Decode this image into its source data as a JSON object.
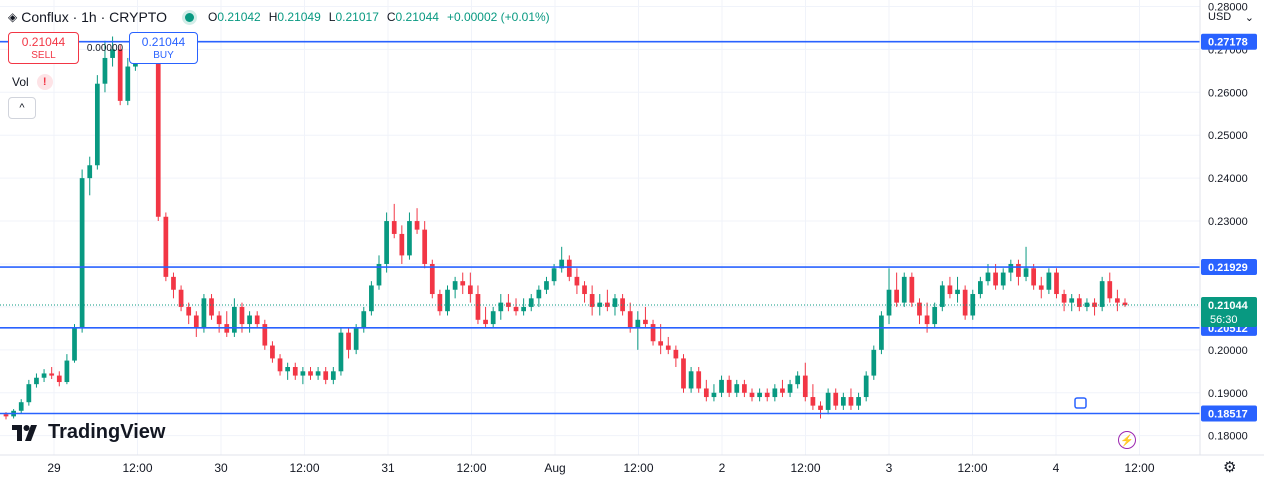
{
  "header": {
    "symbol": "Conflux · 1h · CRYPTO",
    "o_label": "O",
    "o": "0.21042",
    "h_label": "H",
    "h": "0.21049",
    "l_label": "L",
    "l": "0.21017",
    "c_label": "C",
    "c": "0.21044",
    "change": "+0.00002 (+0.01%)"
  },
  "trade": {
    "sell_price": "0.21044",
    "sell_label": "SELL",
    "buy_price": "0.21044",
    "buy_label": "BUY",
    "spread": "0.00000"
  },
  "volume_label": "Vol",
  "warning_glyph": "!",
  "collapse_glyph": "^",
  "brand": "TradingView",
  "currency": "USD",
  "colors": {
    "up": "#089981",
    "down": "#f23645",
    "line": "#2962ff"
  },
  "chart_data": {
    "type": "candlestick",
    "title": "Conflux · 1h · CRYPTO",
    "ylim": [
      0.1755,
      0.2815
    ],
    "y_ticks": [
      "0.28000",
      "0.27000",
      "0.26000",
      "0.25000",
      "0.24000",
      "0.23000",
      "0.22000",
      "0.21000",
      "0.20000",
      "0.19000",
      "0.18000"
    ],
    "x_ticks": [
      "29",
      "12:00",
      "30",
      "12:00",
      "31",
      "12:00",
      "Aug",
      "12:00",
      "2",
      "12:00",
      "3",
      "12:00",
      "4",
      "12:00"
    ],
    "grid": true,
    "horizontal_lines": [
      {
        "value": 0.27178,
        "label": "0.27178"
      },
      {
        "value": 0.21929,
        "label": "0.21929"
      },
      {
        "value": 0.20512,
        "label": "0.20512"
      },
      {
        "value": 0.18517,
        "label": "0.18517"
      }
    ],
    "last_price": {
      "value": 0.21044,
      "label": "0.21044",
      "countdown": "56:30"
    },
    "candles": [
      [
        0.185,
        0.1855,
        0.1838,
        0.1845
      ],
      [
        0.1845,
        0.1862,
        0.184,
        0.1858
      ],
      [
        0.1858,
        0.1885,
        0.1852,
        0.1878
      ],
      [
        0.1878,
        0.193,
        0.187,
        0.192
      ],
      [
        0.192,
        0.1945,
        0.1912,
        0.1935
      ],
      [
        0.1935,
        0.1955,
        0.1925,
        0.1945
      ],
      [
        0.1945,
        0.196,
        0.1932,
        0.194
      ],
      [
        0.194,
        0.195,
        0.1915,
        0.1925
      ],
      [
        0.1925,
        0.199,
        0.192,
        0.1975
      ],
      [
        0.1975,
        0.206,
        0.197,
        0.205
      ],
      [
        0.205,
        0.242,
        0.204,
        0.24
      ],
      [
        0.24,
        0.245,
        0.236,
        0.243
      ],
      [
        0.243,
        0.264,
        0.242,
        0.262
      ],
      [
        0.262,
        0.272,
        0.26,
        0.268
      ],
      [
        0.268,
        0.273,
        0.266,
        0.27
      ],
      [
        0.27,
        0.271,
        0.257,
        0.258
      ],
      [
        0.258,
        0.268,
        0.257,
        0.266
      ],
      [
        0.266,
        0.274,
        0.265,
        0.272
      ],
      [
        0.272,
        0.273,
        0.268,
        0.269
      ],
      [
        0.269,
        0.274,
        0.268,
        0.272
      ],
      [
        0.272,
        0.273,
        0.23,
        0.231
      ],
      [
        0.231,
        0.232,
        0.216,
        0.217
      ],
      [
        0.217,
        0.218,
        0.212,
        0.214
      ],
      [
        0.214,
        0.215,
        0.209,
        0.21
      ],
      [
        0.21,
        0.211,
        0.206,
        0.208
      ],
      [
        0.208,
        0.209,
        0.203,
        0.205
      ],
      [
        0.205,
        0.213,
        0.204,
        0.212
      ],
      [
        0.212,
        0.213,
        0.207,
        0.208
      ],
      [
        0.208,
        0.209,
        0.204,
        0.206
      ],
      [
        0.206,
        0.209,
        0.203,
        0.204
      ],
      [
        0.204,
        0.212,
        0.203,
        0.21
      ],
      [
        0.21,
        0.211,
        0.204,
        0.206
      ],
      [
        0.206,
        0.209,
        0.204,
        0.208
      ],
      [
        0.208,
        0.209,
        0.205,
        0.206
      ],
      [
        0.206,
        0.207,
        0.2,
        0.201
      ],
      [
        0.201,
        0.202,
        0.197,
        0.198
      ],
      [
        0.198,
        0.199,
        0.194,
        0.195
      ],
      [
        0.195,
        0.197,
        0.193,
        0.196
      ],
      [
        0.196,
        0.197,
        0.193,
        0.194
      ],
      [
        0.194,
        0.196,
        0.192,
        0.195
      ],
      [
        0.195,
        0.196,
        0.193,
        0.194
      ],
      [
        0.194,
        0.196,
        0.193,
        0.195
      ],
      [
        0.195,
        0.196,
        0.192,
        0.193
      ],
      [
        0.193,
        0.196,
        0.192,
        0.195
      ],
      [
        0.195,
        0.205,
        0.194,
        0.204
      ],
      [
        0.204,
        0.205,
        0.198,
        0.2
      ],
      [
        0.2,
        0.206,
        0.199,
        0.205
      ],
      [
        0.205,
        0.21,
        0.204,
        0.209
      ],
      [
        0.209,
        0.216,
        0.208,
        0.215
      ],
      [
        0.215,
        0.222,
        0.214,
        0.22
      ],
      [
        0.22,
        0.232,
        0.218,
        0.23
      ],
      [
        0.23,
        0.234,
        0.226,
        0.227
      ],
      [
        0.227,
        0.229,
        0.22,
        0.222
      ],
      [
        0.222,
        0.232,
        0.221,
        0.23
      ],
      [
        0.23,
        0.233,
        0.227,
        0.228
      ],
      [
        0.228,
        0.23,
        0.219,
        0.22
      ],
      [
        0.22,
        0.221,
        0.212,
        0.213
      ],
      [
        0.213,
        0.214,
        0.208,
        0.209
      ],
      [
        0.209,
        0.215,
        0.208,
        0.214
      ],
      [
        0.214,
        0.217,
        0.212,
        0.216
      ],
      [
        0.216,
        0.218,
        0.213,
        0.215
      ],
      [
        0.215,
        0.218,
        0.211,
        0.213
      ],
      [
        0.213,
        0.215,
        0.206,
        0.207
      ],
      [
        0.207,
        0.21,
        0.205,
        0.206
      ],
      [
        0.206,
        0.21,
        0.205,
        0.209
      ],
      [
        0.209,
        0.213,
        0.207,
        0.211
      ],
      [
        0.211,
        0.213,
        0.209,
        0.21
      ],
      [
        0.21,
        0.212,
        0.208,
        0.209
      ],
      [
        0.209,
        0.212,
        0.208,
        0.21
      ],
      [
        0.21,
        0.213,
        0.209,
        0.212
      ],
      [
        0.212,
        0.215,
        0.21,
        0.214
      ],
      [
        0.214,
        0.217,
        0.213,
        0.216
      ],
      [
        0.216,
        0.22,
        0.215,
        0.219
      ],
      [
        0.219,
        0.224,
        0.218,
        0.221
      ],
      [
        0.221,
        0.222,
        0.216,
        0.217
      ],
      [
        0.217,
        0.219,
        0.213,
        0.215
      ],
      [
        0.215,
        0.216,
        0.211,
        0.213
      ],
      [
        0.213,
        0.215,
        0.208,
        0.21
      ],
      [
        0.21,
        0.213,
        0.208,
        0.211
      ],
      [
        0.211,
        0.214,
        0.209,
        0.21
      ],
      [
        0.21,
        0.213,
        0.208,
        0.212
      ],
      [
        0.212,
        0.213,
        0.208,
        0.209
      ],
      [
        0.209,
        0.211,
        0.204,
        0.205
      ],
      [
        0.205,
        0.209,
        0.2,
        0.207
      ],
      [
        0.207,
        0.21,
        0.205,
        0.206
      ],
      [
        0.206,
        0.207,
        0.201,
        0.202
      ],
      [
        0.202,
        0.206,
        0.199,
        0.201
      ],
      [
        0.201,
        0.203,
        0.199,
        0.2
      ],
      [
        0.2,
        0.201,
        0.196,
        0.198
      ],
      [
        0.198,
        0.199,
        0.19,
        0.191
      ],
      [
        0.191,
        0.196,
        0.19,
        0.195
      ],
      [
        0.195,
        0.196,
        0.19,
        0.191
      ],
      [
        0.191,
        0.193,
        0.188,
        0.189
      ],
      [
        0.189,
        0.192,
        0.188,
        0.19
      ],
      [
        0.19,
        0.194,
        0.189,
        0.193
      ],
      [
        0.193,
        0.194,
        0.189,
        0.19
      ],
      [
        0.19,
        0.193,
        0.189,
        0.192
      ],
      [
        0.192,
        0.193,
        0.189,
        0.19
      ],
      [
        0.19,
        0.191,
        0.188,
        0.189
      ],
      [
        0.189,
        0.191,
        0.188,
        0.19
      ],
      [
        0.19,
        0.191,
        0.188,
        0.189
      ],
      [
        0.189,
        0.192,
        0.188,
        0.191
      ],
      [
        0.191,
        0.193,
        0.189,
        0.19
      ],
      [
        0.19,
        0.193,
        0.189,
        0.192
      ],
      [
        0.192,
        0.195,
        0.191,
        0.194
      ],
      [
        0.194,
        0.197,
        0.188,
        0.189
      ],
      [
        0.189,
        0.192,
        0.186,
        0.187
      ],
      [
        0.187,
        0.188,
        0.184,
        0.186
      ],
      [
        0.186,
        0.191,
        0.185,
        0.19
      ],
      [
        0.19,
        0.191,
        0.186,
        0.187
      ],
      [
        0.187,
        0.19,
        0.186,
        0.189
      ],
      [
        0.189,
        0.191,
        0.186,
        0.187
      ],
      [
        0.187,
        0.19,
        0.186,
        0.189
      ],
      [
        0.189,
        0.195,
        0.188,
        0.194
      ],
      [
        0.194,
        0.201,
        0.193,
        0.2
      ],
      [
        0.2,
        0.209,
        0.199,
        0.208
      ],
      [
        0.208,
        0.219,
        0.206,
        0.214
      ],
      [
        0.214,
        0.218,
        0.21,
        0.211
      ],
      [
        0.211,
        0.218,
        0.21,
        0.217
      ],
      [
        0.217,
        0.218,
        0.21,
        0.211
      ],
      [
        0.211,
        0.212,
        0.206,
        0.208
      ],
      [
        0.208,
        0.211,
        0.204,
        0.206
      ],
      [
        0.206,
        0.211,
        0.205,
        0.21
      ],
      [
        0.21,
        0.216,
        0.209,
        0.215
      ],
      [
        0.215,
        0.217,
        0.212,
        0.213
      ],
      [
        0.213,
        0.217,
        0.211,
        0.214
      ],
      [
        0.214,
        0.215,
        0.207,
        0.208
      ],
      [
        0.208,
        0.214,
        0.207,
        0.213
      ],
      [
        0.213,
        0.217,
        0.212,
        0.216
      ],
      [
        0.216,
        0.22,
        0.215,
        0.218
      ],
      [
        0.218,
        0.22,
        0.214,
        0.215
      ],
      [
        0.215,
        0.219,
        0.214,
        0.218
      ],
      [
        0.218,
        0.221,
        0.216,
        0.22
      ],
      [
        0.22,
        0.221,
        0.215,
        0.217
      ],
      [
        0.217,
        0.224,
        0.216,
        0.219
      ],
      [
        0.219,
        0.22,
        0.214,
        0.215
      ],
      [
        0.215,
        0.217,
        0.212,
        0.214
      ],
      [
        0.214,
        0.219,
        0.213,
        0.218
      ],
      [
        0.218,
        0.219,
        0.212,
        0.213
      ],
      [
        0.213,
        0.214,
        0.209,
        0.211
      ],
      [
        0.211,
        0.213,
        0.209,
        0.212
      ],
      [
        0.212,
        0.213,
        0.209,
        0.21
      ],
      [
        0.21,
        0.212,
        0.209,
        0.211
      ],
      [
        0.211,
        0.212,
        0.208,
        0.21
      ],
      [
        0.21,
        0.217,
        0.209,
        0.216
      ],
      [
        0.216,
        0.218,
        0.211,
        0.212
      ],
      [
        0.212,
        0.214,
        0.209,
        0.211
      ],
      [
        0.211,
        0.212,
        0.21,
        0.2104
      ]
    ]
  }
}
